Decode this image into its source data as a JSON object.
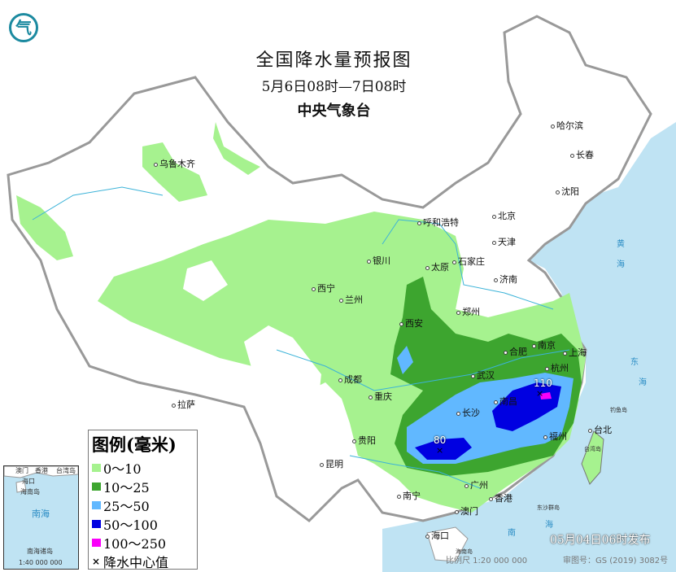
{
  "header": {
    "title": "全国降水量预报图",
    "period": "5月6日08时—7日08时",
    "agency": "中央气象台"
  },
  "logo": {
    "icon": "cma-logo",
    "text": "气"
  },
  "cities": [
    "乌鲁木齐",
    "哈尔滨",
    "长春",
    "沈阳",
    "呼和浩特",
    "北京",
    "天津",
    "石家庄",
    "太原",
    "济南",
    "银川",
    "西宁",
    "兰州",
    "郑州",
    "西安",
    "南京",
    "合肥",
    "上海",
    "杭州",
    "武汉",
    "成都",
    "重庆",
    "南昌",
    "长沙",
    "贵阳",
    "福州",
    "台北",
    "昆明",
    "南宁",
    "广州",
    "香港",
    "澳门",
    "海口",
    "拉萨"
  ],
  "seas": [
    "黄",
    "海",
    "东",
    "海",
    "南",
    "海",
    "台湾岛",
    "海南岛",
    "东沙群岛",
    "钓鱼岛"
  ],
  "precipitation_centers": [
    {
      "value": "110"
    },
    {
      "value": "80"
    }
  ],
  "legend": {
    "title": "图例(毫米)",
    "items": [
      {
        "label": "0～10",
        "color": "#a6f28f"
      },
      {
        "label": "10～25",
        "color": "#3da52f"
      },
      {
        "label": "25～50",
        "color": "#61b8ff"
      },
      {
        "label": "50～100",
        "color": "#0000e1"
      },
      {
        "label": "100～250",
        "color": "#fa00fa"
      }
    ],
    "center_marker": "×",
    "center_label": "降水中心值"
  },
  "inset": {
    "sea": "南海",
    "islands": "南海诸岛",
    "scale": "1:40 000 000",
    "labels": [
      "澳门",
      "香港",
      "台湾岛",
      "海口",
      "海南岛"
    ]
  },
  "footer": {
    "scale": "比例尺 1:20 000 000",
    "map_no": "审图号：GS (2019) 3082号",
    "issued": "05月04日06时发布"
  }
}
